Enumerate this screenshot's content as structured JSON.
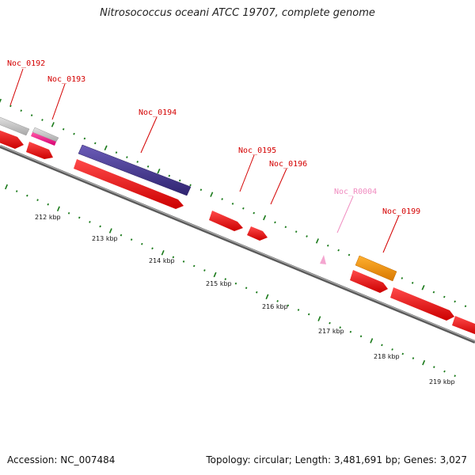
{
  "title": "Nitrosococcus oceani ATCC 19707, complete genome",
  "footer": {
    "accession": "Accession: NC_007484",
    "stats": "Topology: circular; Length: 3,481,691 bp; Genes: 3,027"
  },
  "colors": {
    "label_red": "#d40000",
    "label_pink": "#f08cc0",
    "backbone": "#808080",
    "tick_green": "#1a7a1a",
    "cds_red": "#ff0000",
    "grey_gene": "#c8c8c8",
    "magenta_gene": "#ff1493",
    "purple_gene": "#4b3c96",
    "orange_gene": "#ff9900",
    "rna_pink": "#f4a6d0"
  },
  "genes": [
    {
      "label": "Noc_0192",
      "color_key": "label_red"
    },
    {
      "label": "Noc_0193",
      "color_key": "label_red"
    },
    {
      "label": "Noc_0194",
      "color_key": "label_red"
    },
    {
      "label": "Noc_0195",
      "color_key": "label_red"
    },
    {
      "label": "Noc_0196",
      "color_key": "label_red"
    },
    {
      "label": "Noc_R0004",
      "color_key": "label_pink"
    },
    {
      "label": "Noc_0199",
      "color_key": "label_red"
    }
  ],
  "kbp_ticks": [
    "212 kbp",
    "213 kbp",
    "214 kbp",
    "215 kbp",
    "216 kbp",
    "217 kbp",
    "218 kbp",
    "219 kbp"
  ]
}
